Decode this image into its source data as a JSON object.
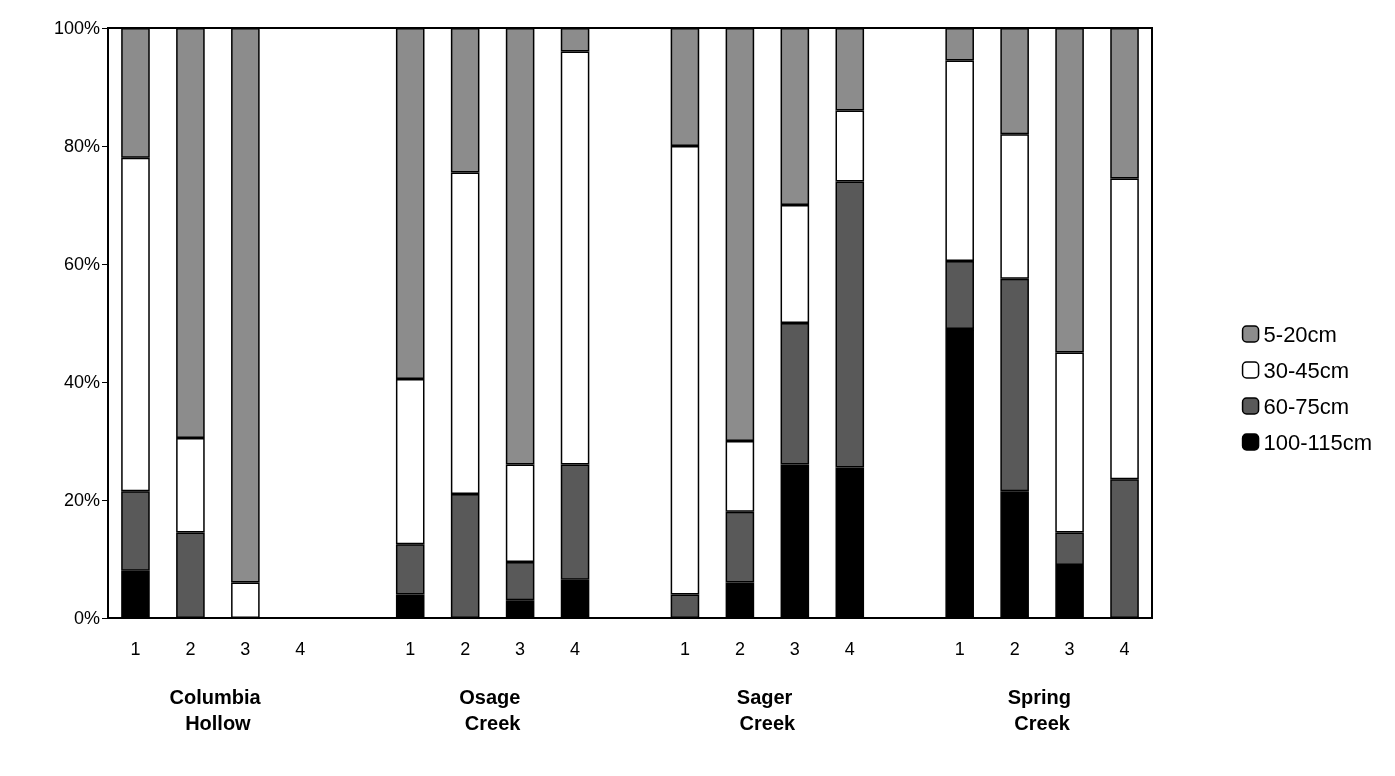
{
  "chart_data": {
    "type": "bar",
    "stacked": true,
    "categories": [
      "1",
      "2",
      "3",
      "4",
      null,
      "1",
      "2",
      "3",
      "4",
      null,
      "1",
      "2",
      "3",
      "4",
      null,
      "1",
      "2",
      "3",
      "4"
    ],
    "series": [
      {
        "name": "100-115cm",
        "color": "#000000",
        "values": [
          8,
          0,
          0,
          null,
          null,
          4,
          0,
          3,
          6.5,
          null,
          0,
          6,
          26,
          25.5,
          null,
          49,
          21.5,
          9,
          0
        ]
      },
      {
        "name": "60-75cm",
        "color": "#595959",
        "values": [
          13.5,
          14.5,
          0,
          null,
          null,
          8.5,
          21,
          6.5,
          19.5,
          null,
          4,
          12,
          24,
          48.5,
          null,
          11.5,
          36,
          5.5,
          23.5
        ]
      },
      {
        "name": "30-45cm",
        "color": "#ffffff",
        "values": [
          56.5,
          16,
          6,
          null,
          null,
          28,
          54.5,
          16.5,
          70,
          null,
          76,
          12,
          20,
          12,
          null,
          34,
          24.5,
          30.5,
          51
        ]
      },
      {
        "name": "5-20cm",
        "color": "#8c8c8c",
        "values": [
          22,
          69.5,
          94,
          null,
          null,
          59.5,
          24.5,
          74,
          4,
          null,
          20,
          70,
          30,
          14,
          null,
          5.5,
          18,
          55,
          25.5
        ]
      }
    ],
    "ylim": [
      0,
      100
    ],
    "yticks": [
      {
        "value": 0,
        "label": "0%"
      },
      {
        "value": 20,
        "label": "20%"
      },
      {
        "value": 40,
        "label": "40%"
      },
      {
        "value": 60,
        "label": "60%"
      },
      {
        "value": 80,
        "label": "80%"
      },
      {
        "value": 100,
        "label": "100%"
      }
    ],
    "annotations": [
      "Columbia Hollow",
      "Osage Creek",
      "Sager Creek",
      "Spring Creek"
    ],
    "legend": "right",
    "grid": false
  }
}
